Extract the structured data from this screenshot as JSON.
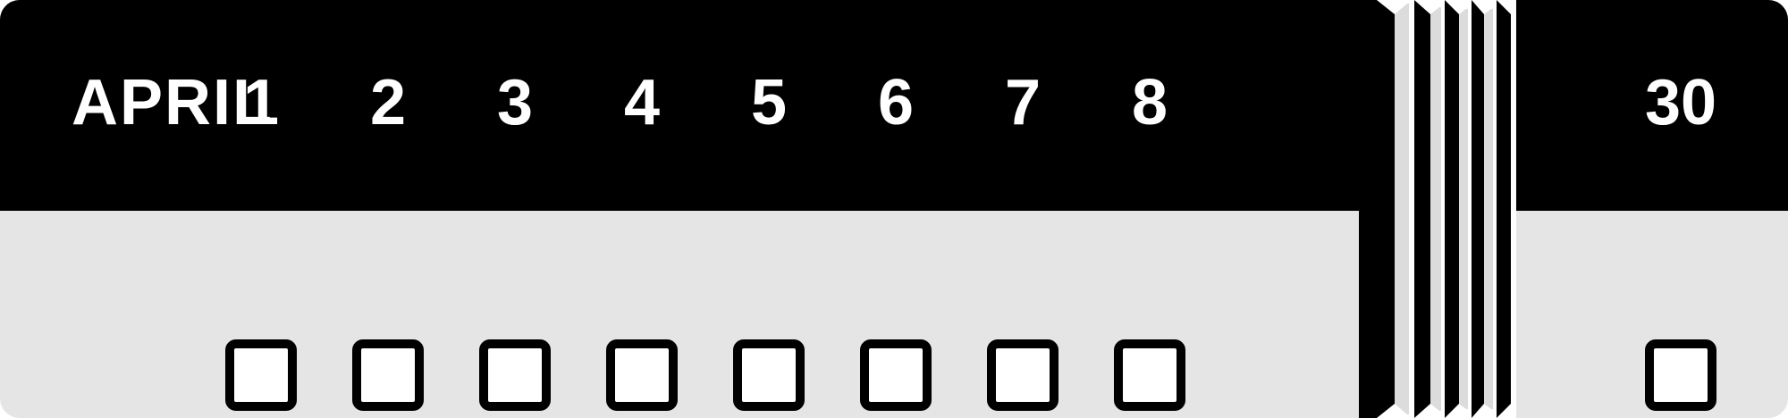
{
  "calendar": {
    "month": "APRIL",
    "days": [
      {
        "label": "1"
      },
      {
        "label": "2"
      },
      {
        "label": "3"
      },
      {
        "label": "4"
      },
      {
        "label": "5"
      },
      {
        "label": "6"
      },
      {
        "label": "7"
      },
      {
        "label": "8"
      }
    ],
    "last_day": {
      "label": "30"
    },
    "checkbox_states": [
      false,
      false,
      false,
      false,
      false,
      false,
      false,
      false,
      false
    ]
  },
  "colors": {
    "header": "#000000",
    "body": "#e5e5e5",
    "checkbox_fill": "#ffffff",
    "checkbox_border": "#000000",
    "text": "#ffffff"
  }
}
